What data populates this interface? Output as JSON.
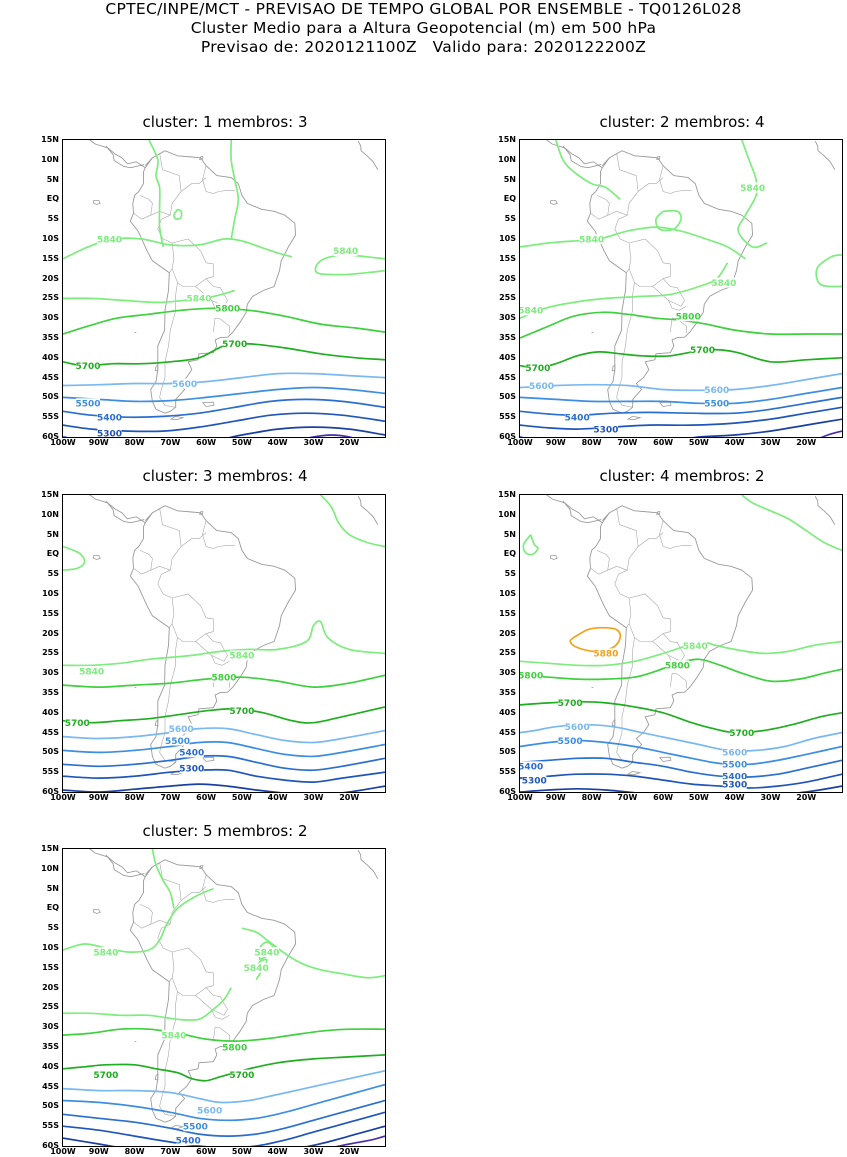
{
  "header": {
    "line1": "CPTEC/INPE/MCT - PREVISAO DE TEMPO GLOBAL POR ENSEMBLE - TQ0126L028",
    "line2": "Cluster Medio para a Altura Geopotencial (m) em 500 hPa",
    "line3": "Previsao de: 2020121100Z   Valido para: 2020122200Z"
  },
  "lat_labels": [
    "15N",
    "10N",
    "5N",
    "EQ",
    "5S",
    "10S",
    "15S",
    "20S",
    "25S",
    "30S",
    "35S",
    "40S",
    "45S",
    "50S",
    "55S",
    "60S"
  ],
  "lon_labels": [
    "100W",
    "90W",
    "80W",
    "70W",
    "60W",
    "50W",
    "40W",
    "30W",
    "20W"
  ],
  "colors": {
    "c5880": "#f5a21b",
    "c5840": "#7ded7d",
    "c5800": "#3fcf3f",
    "c5700": "#1fae1f",
    "c5600": "#7ab8f0",
    "c5500": "#3d8ee0",
    "c5400": "#2a6ed0",
    "c5300": "#1f55b8",
    "c5200": "#1a40a0",
    "c5100": "#4a2fa8",
    "coast": "#9a9a9a"
  },
  "clusters": [
    {
      "title": "cluster: 1   membros: 3",
      "labels": [
        {
          "text": "5840",
          "lon": -87,
          "lat": -10,
          "level": "c5840"
        },
        {
          "text": "5840",
          "lon": -21,
          "lat": -13,
          "level": "c5840"
        },
        {
          "text": "5840",
          "lon": -62,
          "lat": -25,
          "level": "c5840"
        },
        {
          "text": "5800",
          "lon": -54,
          "lat": -27.5,
          "level": "c5800"
        },
        {
          "text": "5700",
          "lon": -52,
          "lat": -36.5,
          "level": "c5700"
        },
        {
          "text": "5700",
          "lon": -93,
          "lat": -42,
          "level": "c5700"
        },
        {
          "text": "5600",
          "lon": -66,
          "lat": -46.5,
          "level": "c5600"
        },
        {
          "text": "5500",
          "lon": -93,
          "lat": -51.5,
          "level": "c5500"
        },
        {
          "text": "5400",
          "lon": -87,
          "lat": -55,
          "level": "c5400"
        },
        {
          "text": "5300",
          "lon": -87,
          "lat": -59,
          "level": "c5300"
        }
      ]
    },
    {
      "title": "cluster: 2   membros: 4",
      "labels": [
        {
          "text": "5840",
          "lon": -35,
          "lat": 3,
          "level": "c5840"
        },
        {
          "text": "5840",
          "lon": -80,
          "lat": -10,
          "level": "c5840"
        },
        {
          "text": "5840",
          "lon": -43,
          "lat": -21,
          "level": "c5840"
        },
        {
          "text": "5840",
          "lon": -97,
          "lat": -28,
          "level": "c5840"
        },
        {
          "text": "5800",
          "lon": -53,
          "lat": -29.5,
          "level": "c5800"
        },
        {
          "text": "5700",
          "lon": -49,
          "lat": -38,
          "level": "c5700"
        },
        {
          "text": "5700",
          "lon": -95,
          "lat": -42.5,
          "level": "c5700"
        },
        {
          "text": "5600",
          "lon": -94,
          "lat": -47,
          "level": "c5600"
        },
        {
          "text": "5600",
          "lon": -45,
          "lat": -48,
          "level": "c5600"
        },
        {
          "text": "5500",
          "lon": -45,
          "lat": -51.5,
          "level": "c5500"
        },
        {
          "text": "5400",
          "lon": -84,
          "lat": -55,
          "level": "c5400"
        },
        {
          "text": "5300",
          "lon": -76,
          "lat": -58,
          "level": "c5300"
        }
      ]
    },
    {
      "title": "cluster: 3   membros: 4",
      "labels": [
        {
          "text": "5840",
          "lon": -50,
          "lat": -25.5,
          "level": "c5840"
        },
        {
          "text": "5840",
          "lon": -92,
          "lat": -29.5,
          "level": "c5840"
        },
        {
          "text": "5800",
          "lon": -55,
          "lat": -31,
          "level": "c5800"
        },
        {
          "text": "5700",
          "lon": -50,
          "lat": -39.5,
          "level": "c5700"
        },
        {
          "text": "5700",
          "lon": -96,
          "lat": -42.5,
          "level": "c5700"
        },
        {
          "text": "5600",
          "lon": -67,
          "lat": -44,
          "level": "c5600"
        },
        {
          "text": "5500",
          "lon": -68,
          "lat": -47,
          "level": "c5500"
        },
        {
          "text": "5400",
          "lon": -64,
          "lat": -50,
          "level": "c5400"
        },
        {
          "text": "5300",
          "lon": -64,
          "lat": -54,
          "level": "c5300"
        }
      ]
    },
    {
      "title": "cluster: 4   membros: 2",
      "labels": [
        {
          "text": "5880",
          "lon": -76,
          "lat": -25,
          "level": "c5880"
        },
        {
          "text": "5840",
          "lon": -51,
          "lat": -23,
          "level": "c5840"
        },
        {
          "text": "5800",
          "lon": -97,
          "lat": -30.5,
          "level": "c5800"
        },
        {
          "text": "5800",
          "lon": -56,
          "lat": -28,
          "level": "c5800"
        },
        {
          "text": "5700",
          "lon": -86,
          "lat": -37.5,
          "level": "c5700"
        },
        {
          "text": "5700",
          "lon": -38,
          "lat": -45,
          "level": "c5700"
        },
        {
          "text": "5600",
          "lon": -84,
          "lat": -43.5,
          "level": "c5600"
        },
        {
          "text": "5600",
          "lon": -40,
          "lat": -50,
          "level": "c5600"
        },
        {
          "text": "5500",
          "lon": -86,
          "lat": -47,
          "level": "c5500"
        },
        {
          "text": "5500",
          "lon": -40,
          "lat": -53,
          "level": "c5500"
        },
        {
          "text": "5400",
          "lon": -97,
          "lat": -53.5,
          "level": "c5400"
        },
        {
          "text": "5400",
          "lon": -40,
          "lat": -56,
          "level": "c5400"
        },
        {
          "text": "5300",
          "lon": -96,
          "lat": -57,
          "level": "c5300"
        },
        {
          "text": "5300",
          "lon": -40,
          "lat": -58,
          "level": "c5300"
        }
      ]
    },
    {
      "title": "cluster: 5   membros: 2",
      "labels": [
        {
          "text": "5840",
          "lon": -88,
          "lat": -11,
          "level": "c5840"
        },
        {
          "text": "5840",
          "lon": -43,
          "lat": -11,
          "level": "c5840"
        },
        {
          "text": "5840",
          "lon": -46,
          "lat": -15,
          "level": "c5840"
        },
        {
          "text": "5840",
          "lon": -69,
          "lat": -32,
          "level": "c5840"
        },
        {
          "text": "5800",
          "lon": -52,
          "lat": -35,
          "level": "c5800"
        },
        {
          "text": "5700",
          "lon": -88,
          "lat": -42,
          "level": "c5700"
        },
        {
          "text": "5700",
          "lon": -50,
          "lat": -42,
          "level": "c5700"
        },
        {
          "text": "5600",
          "lon": -59,
          "lat": -51,
          "level": "c5600"
        },
        {
          "text": "5500",
          "lon": -63,
          "lat": -55,
          "level": "c5500"
        },
        {
          "text": "5400",
          "lon": -65,
          "lat": -58.5,
          "level": "c5400"
        }
      ]
    }
  ]
}
